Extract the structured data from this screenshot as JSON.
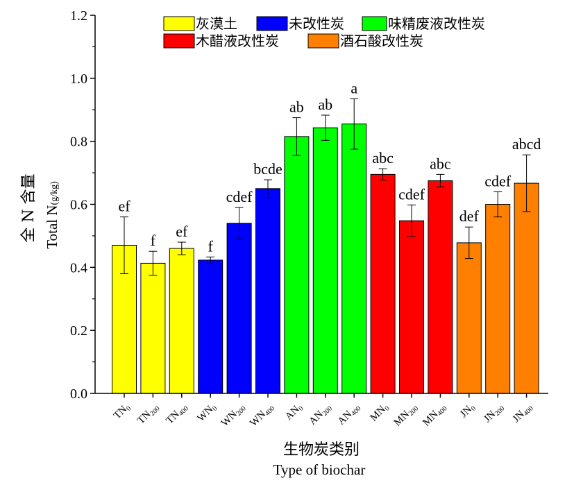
{
  "chart_data": {
    "type": "bar",
    "categories": [
      {
        "base": "TN",
        "sub": "0"
      },
      {
        "base": "TN",
        "sub": "200"
      },
      {
        "base": "TN",
        "sub": "400"
      },
      {
        "base": "WN",
        "sub": "0"
      },
      {
        "base": "WN",
        "sub": "200"
      },
      {
        "base": "WN",
        "sub": "400"
      },
      {
        "base": "AN",
        "sub": "0"
      },
      {
        "base": "AN",
        "sub": "200"
      },
      {
        "base": "AN",
        "sub": "400"
      },
      {
        "base": "MN",
        "sub": "0"
      },
      {
        "base": "MN",
        "sub": "200"
      },
      {
        "base": "MN",
        "sub": "400"
      },
      {
        "base": "JN",
        "sub": "0"
      },
      {
        "base": "JN",
        "sub": "200"
      },
      {
        "base": "JN",
        "sub": "400"
      }
    ],
    "values": [
      0.47,
      0.413,
      0.46,
      0.423,
      0.54,
      0.65,
      0.815,
      0.843,
      0.855,
      0.695,
      0.548,
      0.675,
      0.478,
      0.6,
      0.667
    ],
    "errors": [
      0.09,
      0.038,
      0.02,
      0.01,
      0.05,
      0.028,
      0.06,
      0.04,
      0.08,
      0.018,
      0.05,
      0.02,
      0.05,
      0.04,
      0.09
    ],
    "letters": [
      "ef",
      "f",
      "ef",
      "f",
      "cdef",
      "bcde",
      "ab",
      "ab",
      "a",
      "abc",
      "cdef",
      "abc",
      "def",
      "cdef",
      "abcd"
    ],
    "groups": [
      0,
      0,
      0,
      1,
      1,
      1,
      2,
      2,
      2,
      3,
      3,
      3,
      4,
      4,
      4
    ],
    "legend": [
      {
        "label": "灰漠土",
        "color": "#ffff00"
      },
      {
        "label": "未改性炭",
        "color": "#0000ff"
      },
      {
        "label": "味精废液改性炭",
        "color": "#00ff00"
      },
      {
        "label": "木醋液改性炭",
        "color": "#ff0000"
      },
      {
        "label": "酒石酸改性炭",
        "color": "#ff8000"
      }
    ],
    "ylim": [
      0.0,
      1.2
    ],
    "yticks": [
      "0.0",
      "0.2",
      "0.4",
      "0.6",
      "0.8",
      "1.0",
      "1.2"
    ],
    "ylabel_cn": "全 N 含量",
    "ylabel_en": "Total N",
    "ylabel_unit": "(g/kg)",
    "xlabel_cn": "生物炭类别",
    "xlabel_en": "Type of biochar",
    "grid": false,
    "legend_position": "top"
  }
}
